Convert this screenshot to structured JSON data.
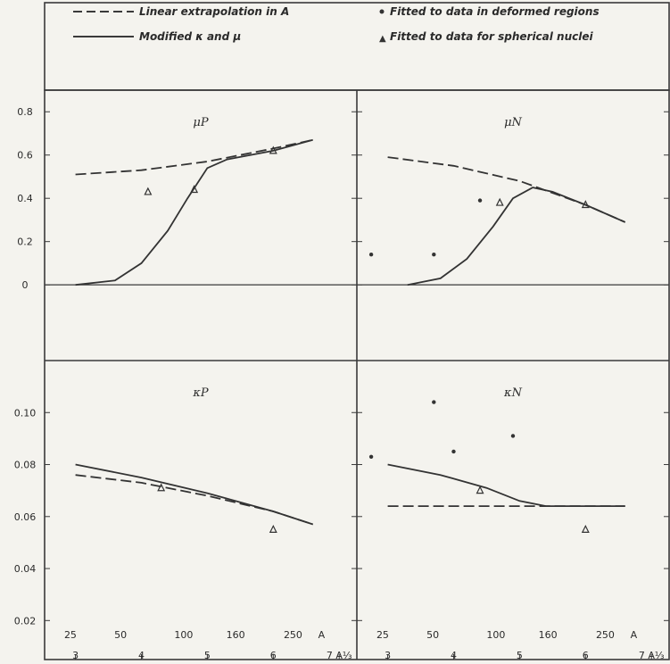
{
  "chart_data": [
    {
      "type": "line",
      "panel": "top-left",
      "title": "μP",
      "x_scale": "A^(1/3)",
      "x_top_ticks": [
        "25",
        "50",
        "100",
        "160",
        "250",
        "A"
      ],
      "x_bottom_ticks": [
        "3",
        "4",
        "5",
        "6",
        "7 A⅓"
      ],
      "y_ticks": [
        "0.8",
        "0.6",
        "0.4",
        "0.2",
        "0"
      ],
      "ylim": [
        -0.35,
        0.9
      ],
      "xlim": [
        2.6,
        7.2
      ],
      "series": [
        {
          "name": "Linear extrapolation in A",
          "style": "dashed",
          "x": [
            3.0,
            4.0,
            5.0,
            6.0,
            6.6
          ],
          "y": [
            0.51,
            0.53,
            0.57,
            0.63,
            0.67
          ]
        },
        {
          "name": "Modified κ and μ",
          "style": "solid",
          "x": [
            3.0,
            3.6,
            4.0,
            4.4,
            4.7,
            5.0,
            5.3,
            6.0,
            6.6
          ],
          "y": [
            0.0,
            0.02,
            0.1,
            0.25,
            0.4,
            0.54,
            0.58,
            0.62,
            0.67
          ]
        },
        {
          "name": "Fitted to data for spherical nuclei",
          "style": "triangle",
          "x": [
            4.1,
            4.8,
            6.0
          ],
          "y": [
            0.43,
            0.44,
            0.62
          ]
        }
      ]
    },
    {
      "type": "line",
      "panel": "top-right",
      "title": "μN",
      "x_scale": "A^(1/3)",
      "x_top_ticks": [
        "25",
        "50",
        "100",
        "160",
        "250",
        "A"
      ],
      "x_bottom_ticks": [
        "3",
        "4",
        "5",
        "6",
        "7 A⅓"
      ],
      "y_ticks": [
        "0.8",
        "0.6",
        "0.4",
        "0.2",
        "0"
      ],
      "ylim": [
        -0.35,
        0.9
      ],
      "xlim": [
        2.6,
        7.2
      ],
      "series": [
        {
          "name": "Linear extrapolation in A",
          "style": "dashed",
          "x": [
            3.0,
            4.0,
            5.0,
            6.0,
            6.6
          ],
          "y": [
            0.59,
            0.55,
            0.48,
            0.37,
            0.29
          ]
        },
        {
          "name": "Modified κ and μ",
          "style": "solid",
          "x": [
            3.3,
            3.8,
            4.2,
            4.6,
            4.9,
            5.2,
            5.5,
            6.0,
            6.6
          ],
          "y": [
            0.0,
            0.03,
            0.12,
            0.27,
            0.4,
            0.45,
            0.43,
            0.37,
            0.29
          ]
        },
        {
          "name": "Fitted to data in deformed regions",
          "style": "circle",
          "x": [
            2.75,
            3.7,
            4.4
          ],
          "y": [
            0.14,
            0.14,
            0.39
          ]
        },
        {
          "name": "Fitted to data for spherical nuclei",
          "style": "triangle",
          "x": [
            4.7,
            6.0
          ],
          "y": [
            0.38,
            0.37
          ]
        }
      ]
    },
    {
      "type": "line",
      "panel": "bottom-left",
      "title": "κP",
      "x_scale": "A^(1/3)",
      "x_top_ticks": [
        "25",
        "50",
        "100",
        "160",
        "250",
        "A"
      ],
      "x_bottom_ticks": [
        "3",
        "4",
        "5",
        "6",
        "7 A⅓"
      ],
      "y_ticks": [
        "0.10",
        "0.08",
        "0.06",
        "0.04",
        "0.02"
      ],
      "ylim": [
        0.005,
        0.12
      ],
      "xlim": [
        2.6,
        7.2
      ],
      "series": [
        {
          "name": "Linear extrapolation in A",
          "style": "dashed",
          "x": [
            3.0,
            4.0,
            5.0,
            6.0,
            6.6
          ],
          "y": [
            0.076,
            0.073,
            0.068,
            0.062,
            0.057
          ]
        },
        {
          "name": "Modified κ and μ",
          "style": "solid",
          "x": [
            3.0,
            4.0,
            5.0,
            6.0,
            6.6
          ],
          "y": [
            0.08,
            0.075,
            0.069,
            0.062,
            0.057
          ]
        },
        {
          "name": "Fitted to data for spherical nuclei",
          "style": "triangle",
          "x": [
            4.3,
            6.0
          ],
          "y": [
            0.071,
            0.055
          ]
        }
      ]
    },
    {
      "type": "line",
      "panel": "bottom-right",
      "title": "κN",
      "x_scale": "A^(1/3)",
      "x_top_ticks": [
        "25",
        "50",
        "100",
        "160",
        "250",
        "A"
      ],
      "x_bottom_ticks": [
        "3",
        "4",
        "5",
        "6",
        "7 A⅓"
      ],
      "y_ticks": [
        "0.10",
        "0.08",
        "0.06",
        "0.04",
        "0.02"
      ],
      "ylim": [
        0.005,
        0.12
      ],
      "xlim": [
        2.6,
        7.2
      ],
      "series": [
        {
          "name": "Linear extrapolation in A",
          "style": "dashed",
          "x": [
            3.0,
            4.0,
            5.0,
            6.0,
            6.6
          ],
          "y": [
            0.064,
            0.064,
            0.064,
            0.064,
            0.064
          ]
        },
        {
          "name": "Modified κ and μ",
          "style": "solid",
          "x": [
            3.0,
            3.8,
            4.5,
            5.0,
            5.4,
            6.0,
            6.6
          ],
          "y": [
            0.08,
            0.076,
            0.071,
            0.066,
            0.064,
            0.064,
            0.064
          ]
        },
        {
          "name": "Fitted to data in deformed regions",
          "style": "circle",
          "x": [
            2.75,
            3.7,
            4.0,
            4.9
          ],
          "y": [
            0.083,
            0.104,
            0.085,
            0.091
          ]
        },
        {
          "name": "Fitted to data for spherical nuclei",
          "style": "triangle",
          "x": [
            4.4,
            6.0
          ],
          "y": [
            0.07,
            0.055
          ]
        }
      ]
    }
  ],
  "legend": {
    "dashed": "Linear extrapolation in A",
    "solid": "Modified κ and μ",
    "circle": "Fitted to data in deformed regions",
    "triangle": "Fitted to data for spherical nuclei"
  }
}
